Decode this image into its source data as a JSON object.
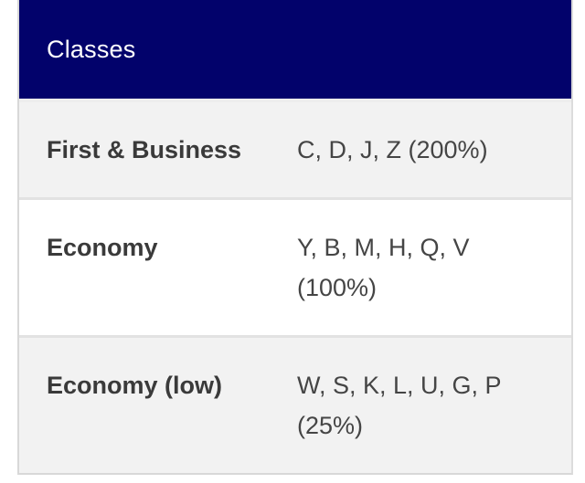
{
  "table": {
    "header": "Classes",
    "columns": [
      "class_name",
      "booking_codes"
    ],
    "rows": [
      {
        "label": "First & Business",
        "codes": "C, D, J, Z",
        "percent": "(200%)"
      },
      {
        "label": "Economy",
        "codes": "Y, B, M, H, Q, V",
        "percent": "(100%)"
      },
      {
        "label": "Economy (low)",
        "codes": "W, S, K, L, U, G, P",
        "percent": "(25%)"
      }
    ]
  },
  "colors": {
    "header_bg": "#02026B",
    "header_text": "#FFFFFF",
    "row_alt_bg": "#F2F2F2",
    "row_bg": "#FFFFFF",
    "label_text": "#3A3A3A",
    "value_text": "#454545",
    "divider": "#E2E2E2"
  }
}
